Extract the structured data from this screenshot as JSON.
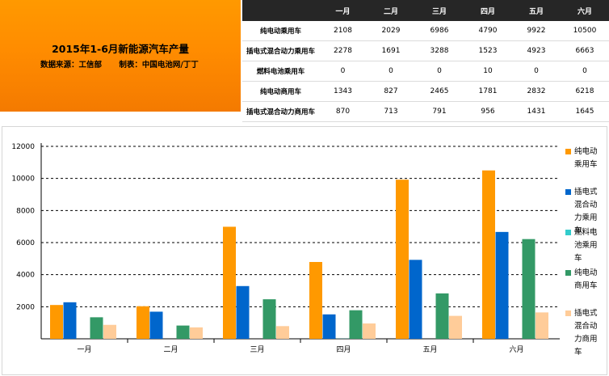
{
  "header": {
    "title": "2015年1-6月新能源汽车产量",
    "source": "数据来源：工信部",
    "maker": "制表：中国电池网/丁丁"
  },
  "table": {
    "columns": [
      "一月",
      "二月",
      "三月",
      "四月",
      "五月",
      "六月"
    ],
    "rows": [
      {
        "label": "纯电动乘用车",
        "values": [
          "2108",
          "2029",
          "6986",
          "4790",
          "9922",
          "10500"
        ]
      },
      {
        "label": "插电式混合动力乘用车",
        "values": [
          "2278",
          "1691",
          "3288",
          "1523",
          "4923",
          "6663"
        ]
      },
      {
        "label": "燃料电池乘用车",
        "values": [
          "0",
          "0",
          "0",
          "10",
          "0",
          "0"
        ]
      },
      {
        "label": "纯电动商用车",
        "values": [
          "1343",
          "827",
          "2465",
          "1781",
          "2832",
          "6218"
        ]
      },
      {
        "label": "插电式混合动力商用车",
        "values": [
          "870",
          "713",
          "791",
          "956",
          "1431",
          "1645"
        ]
      }
    ]
  },
  "colors": {
    "title_panel": "#ff8c00",
    "table_header": "#262626",
    "series": [
      "#ff9900",
      "#0066cc",
      "#33cccc",
      "#339966",
      "#ffcc99"
    ]
  },
  "chart_data": {
    "type": "bar",
    "categories": [
      "一月",
      "二月",
      "三月",
      "四月",
      "五月",
      "六月"
    ],
    "series": [
      {
        "name": "纯电动乘用车",
        "values": [
          2108,
          2029,
          6986,
          4790,
          9922,
          10500
        ]
      },
      {
        "name": "插电式混合动力乘用车",
        "values": [
          2278,
          1691,
          3288,
          1523,
          4923,
          6663
        ]
      },
      {
        "name": "燃料电池乘用车",
        "values": [
          0,
          0,
          0,
          10,
          0,
          0
        ]
      },
      {
        "name": "纯电动商用车",
        "values": [
          1343,
          827,
          2465,
          1781,
          2832,
          6218
        ]
      },
      {
        "name": "插电式混合动力商用车",
        "values": [
          870,
          713,
          791,
          956,
          1431,
          1645
        ]
      }
    ],
    "ylim": [
      0,
      12000
    ],
    "yticks": [
      "2000",
      "4000",
      "6000",
      "8000",
      "10000",
      "12000"
    ],
    "grid": true,
    "legend": "right"
  }
}
